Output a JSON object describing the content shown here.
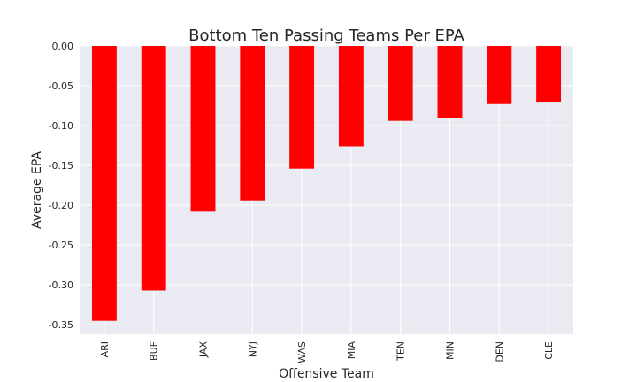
{
  "chart_data": {
    "type": "bar",
    "title": "Bottom Ten Passing Teams Per EPA",
    "xlabel": "Offensive Team",
    "ylabel": "Average EPA",
    "categories": [
      "ARI",
      "BUF",
      "JAX",
      "NYJ",
      "WAS",
      "MIA",
      "TEN",
      "MIN",
      "DEN",
      "CLE"
    ],
    "values": [
      -0.345,
      -0.307,
      -0.208,
      -0.194,
      -0.154,
      -0.126,
      -0.094,
      -0.09,
      -0.073,
      -0.07
    ],
    "ylim": [
      -0.362,
      0.0
    ],
    "yticks": [
      0.0,
      -0.05,
      -0.1,
      -0.15,
      -0.2,
      -0.25,
      -0.3,
      -0.35
    ],
    "ytick_labels": [
      "0.00",
      "-0.05",
      "-0.10",
      "-0.15",
      "-0.20",
      "-0.25",
      "-0.30",
      "-0.35"
    ],
    "bar_color": "#ff0000",
    "plot_background": "#eaeaf2",
    "grid_color": "#ffffff",
    "grid": true,
    "legend": "none"
  }
}
